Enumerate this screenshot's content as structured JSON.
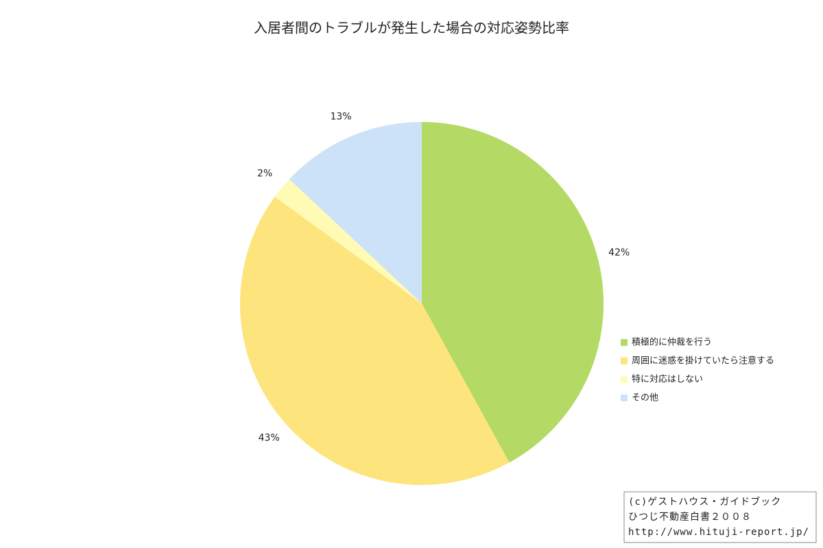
{
  "chart_data": {
    "type": "pie",
    "title": "入居者間のトラブルが発生した場合の対応姿勢比率",
    "categories": [
      "積極的に仲裁を行う",
      "周囲に迷惑を掛けていたら注意する",
      "特に対応はしない",
      "その他"
    ],
    "values": [
      42,
      43,
      2,
      13
    ],
    "value_labels": [
      "42%",
      "43%",
      "2%",
      "13%"
    ],
    "colors": [
      "#b4d964",
      "#fde47c",
      "#fffbb4",
      "#cce2f8"
    ],
    "start_angle": 0,
    "direction": "clockwise",
    "legend": "right"
  },
  "credit": [
    "(c)ゲストハウス・ガイドブック",
    "ひつじ不動産白書２００８",
    "http://www.hituji-report.jp/"
  ]
}
